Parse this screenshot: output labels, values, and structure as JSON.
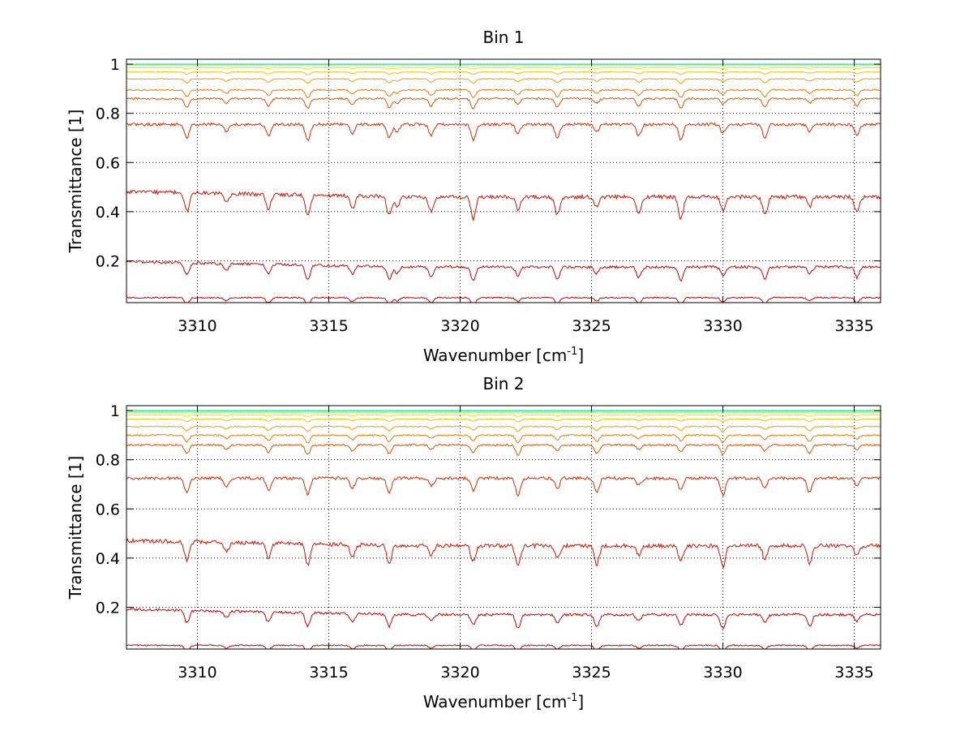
{
  "chart_data": [
    {
      "type": "line",
      "title": "Bin 1",
      "xlabel": "Wavenumber [cm",
      "xlabel_sup": "-1",
      "xlabel_end": "]",
      "ylabel": "Transmittance [1]",
      "xlim": [
        3307.3,
        3336
      ],
      "ylim": [
        0.03,
        1.02
      ],
      "xticks": [
        3310,
        3315,
        3320,
        3325,
        3330,
        3335
      ],
      "yticks": [
        0.2,
        0.4,
        0.6,
        0.8,
        1
      ],
      "ytick_labels": [
        "0.2",
        "0.4",
        "0.6",
        "0.8",
        "1"
      ],
      "grid": true,
      "series_baselines": [
        1.0,
        0.998,
        0.994,
        0.985,
        0.968,
        0.94,
        0.895,
        0.86,
        0.755,
        0.46,
        0.175,
        0.05
      ],
      "series_colors": [
        "#00c8ff",
        "#40ffbf",
        "#bfff40",
        "#e8e800",
        "#f0c000",
        "#f0a000",
        "#e87800",
        "#e05000",
        "#d82800",
        "#d01000",
        "#c80000",
        "#c00000"
      ],
      "absorption_lines": [
        3309.6,
        3311.1,
        3312.7,
        3314.2,
        3315.9,
        3317.3,
        3317.6,
        3318.9,
        3320.5,
        3322.2,
        3323.7,
        3325.2,
        3326.8,
        3328.4,
        3330,
        3331.6,
        3333.3,
        3335.1
      ]
    },
    {
      "type": "line",
      "title": "Bin 2",
      "xlabel": "Wavenumber [cm",
      "xlabel_sup": "-1",
      "xlabel_end": "]",
      "ylabel": "Transmittance [1]",
      "xlim": [
        3307.3,
        3336
      ],
      "ylim": [
        0.03,
        1.02
      ],
      "xticks": [
        3310,
        3315,
        3320,
        3325,
        3330,
        3335
      ],
      "yticks": [
        0.2,
        0.4,
        0.6,
        0.8,
        1
      ],
      "ytick_labels": [
        "0.2",
        "0.4",
        "0.6",
        "0.8",
        "1"
      ],
      "grid": true,
      "series_baselines": [
        1.0,
        0.998,
        0.992,
        0.982,
        0.965,
        0.935,
        0.9,
        0.86,
        0.725,
        0.45,
        0.17,
        0.045
      ],
      "series_colors": [
        "#00c8ff",
        "#40ffbf",
        "#bfff40",
        "#e8e800",
        "#f0c000",
        "#f0a000",
        "#e87800",
        "#e05000",
        "#d82800",
        "#d01000",
        "#c80000",
        "#c00000"
      ],
      "absorption_lines": [
        3309.6,
        3311.1,
        3312.7,
        3314.2,
        3315.9,
        3317.3,
        3318.9,
        3320.5,
        3322.2,
        3323.7,
        3325.2,
        3326.8,
        3328.4,
        3330,
        3331.6,
        3333.3,
        3335.1
      ]
    }
  ]
}
